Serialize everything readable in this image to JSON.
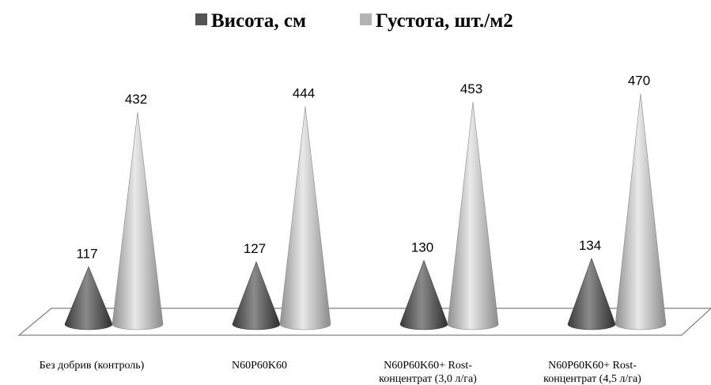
{
  "chart_data": {
    "type": "bar",
    "bar_shape": "cone",
    "categories": [
      [
        "Без добрив (контроль)"
      ],
      [
        "N60P60K60"
      ],
      [
        "N60P60K60+ Rost-",
        "концентрат (3,0 л/га)"
      ],
      [
        "N60P60K60+ Rost-",
        "концентрат (4,5 л/га)"
      ]
    ],
    "series": [
      {
        "name": "Висота, см",
        "values": [
          117,
          127,
          130,
          134
        ],
        "color": "#555555"
      },
      {
        "name": "Густота, шт./м2",
        "values": [
          432,
          444,
          453,
          470
        ],
        "color": "#b3b3b3"
      }
    ],
    "ylim": [
      0,
      500
    ],
    "legend_position": "top-center",
    "grid": false
  }
}
